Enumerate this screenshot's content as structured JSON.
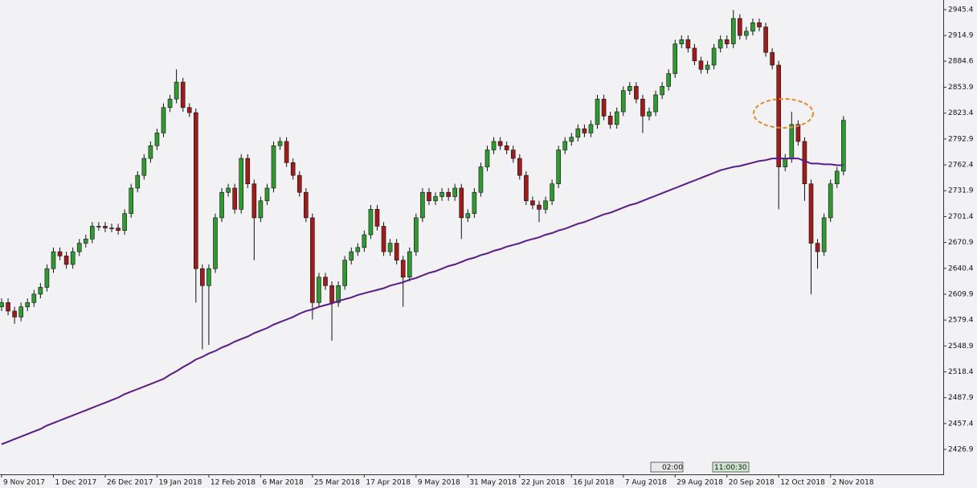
{
  "chart_data": {
    "type": "candlestick",
    "ylim": [
      2397.5,
      2956.8
    ],
    "yticks": [
      2945.4,
      2914.9,
      2884.6,
      2853.9,
      2823.4,
      2792.9,
      2762.4,
      2731.9,
      2701.4,
      2670.9,
      2640.4,
      2609.9,
      2579.4,
      2548.9,
      2518.4,
      2487.9,
      2457.4,
      2426.9
    ],
    "categories": [
      "9 Nov 2017",
      null,
      null,
      null,
      null,
      null,
      null,
      null,
      "1 Dec 2017",
      null,
      null,
      null,
      null,
      null,
      null,
      null,
      "26 Dec 2017",
      null,
      null,
      null,
      null,
      null,
      null,
      null,
      "19 Jan 2018",
      null,
      null,
      null,
      null,
      null,
      null,
      null,
      "12 Feb 2018",
      null,
      null,
      null,
      null,
      null,
      null,
      null,
      "6 Mar 2018",
      null,
      null,
      null,
      null,
      null,
      null,
      null,
      "25 Mar 2018",
      null,
      null,
      null,
      null,
      null,
      null,
      null,
      "17 Apr 2018",
      null,
      null,
      null,
      null,
      null,
      null,
      null,
      "9 May 2018",
      null,
      null,
      null,
      null,
      null,
      null,
      null,
      "31 May 2018",
      null,
      null,
      null,
      null,
      null,
      null,
      null,
      "22 Jun 2018",
      null,
      null,
      null,
      null,
      null,
      null,
      null,
      "16 Jul 2018",
      null,
      null,
      null,
      null,
      null,
      null,
      null,
      "7 Aug 2018",
      null,
      null,
      null,
      null,
      null,
      null,
      null,
      "29 Aug 2018",
      null,
      null,
      null,
      null,
      null,
      null,
      null,
      "20 Sep 2018",
      null,
      null,
      null,
      null,
      null,
      null,
      null,
      "12 Oct 2018",
      null,
      null,
      null,
      null,
      null,
      null,
      null,
      "2 Nov 2018",
      null,
      null
    ],
    "open": [
      2595,
      2600,
      2590,
      2583,
      2595,
      2600,
      2610,
      2618,
      2640,
      2660,
      2655,
      2645,
      2660,
      2670,
      2675,
      2690,
      2690,
      2688,
      2688,
      2685,
      2705,
      2735,
      2750,
      2770,
      2785,
      2800,
      2830,
      2840,
      2860,
      2830,
      2824,
      2640,
      2620,
      2640,
      2700,
      2730,
      2735,
      2710,
      2770,
      2740,
      2700,
      2720,
      2735,
      2785,
      2790,
      2765,
      2750,
      2730,
      2700,
      2600,
      2630,
      2620,
      2600,
      2620,
      2650,
      2660,
      2665,
      2680,
      2710,
      2690,
      2660,
      2670,
      2650,
      2630,
      2660,
      2700,
      2730,
      2720,
      2725,
      2730,
      2725,
      2735,
      2700,
      2705,
      2730,
      2760,
      2780,
      2790,
      2785,
      2780,
      2770,
      2750,
      2720,
      2715,
      2710,
      2720,
      2740,
      2780,
      2790,
      2795,
      2805,
      2800,
      2810,
      2840,
      2820,
      2810,
      2825,
      2850,
      2855,
      2840,
      2820,
      2825,
      2845,
      2855,
      2870,
      2905,
      2910,
      2900,
      2885,
      2875,
      2880,
      2900,
      2910,
      2905,
      2935,
      2915,
      2920,
      2930,
      2925,
      2895,
      2880,
      2760,
      2770,
      2810,
      2790,
      2740,
      2670,
      2660,
      2700,
      2740,
      2755
    ],
    "high": [
      2605,
      2605,
      2595,
      2600,
      2605,
      2615,
      2623,
      2645,
      2665,
      2665,
      2660,
      2665,
      2675,
      2680,
      2695,
      2695,
      2695,
      2693,
      2693,
      2710,
      2740,
      2755,
      2775,
      2790,
      2805,
      2835,
      2845,
      2875,
      2865,
      2835,
      2829,
      2645,
      2645,
      2705,
      2735,
      2740,
      2740,
      2775,
      2775,
      2745,
      2725,
      2740,
      2790,
      2795,
      2795,
      2770,
      2755,
      2735,
      2705,
      2635,
      2635,
      2625,
      2625,
      2655,
      2665,
      2670,
      2685,
      2715,
      2715,
      2695,
      2675,
      2675,
      2655,
      2665,
      2705,
      2735,
      2735,
      2730,
      2735,
      2735,
      2740,
      2740,
      2710,
      2735,
      2765,
      2785,
      2795,
      2795,
      2790,
      2785,
      2775,
      2755,
      2725,
      2720,
      2725,
      2745,
      2785,
      2795,
      2800,
      2810,
      2810,
      2815,
      2845,
      2845,
      2825,
      2830,
      2855,
      2860,
      2860,
      2845,
      2830,
      2850,
      2860,
      2875,
      2910,
      2915,
      2915,
      2905,
      2890,
      2885,
      2905,
      2915,
      2915,
      2945,
      2940,
      2925,
      2935,
      2935,
      2930,
      2900,
      2885,
      2775,
      2825,
      2815,
      2795,
      2745,
      2675,
      2705,
      2745,
      2760,
      2820
    ],
    "low": [
      2590,
      2585,
      2575,
      2578,
      2590,
      2595,
      2605,
      2613,
      2635,
      2650,
      2640,
      2640,
      2655,
      2665,
      2670,
      2685,
      2683,
      2683,
      2680,
      2680,
      2700,
      2730,
      2745,
      2765,
      2780,
      2795,
      2825,
      2835,
      2825,
      2819,
      2600,
      2545,
      2550,
      2635,
      2695,
      2725,
      2705,
      2705,
      2735,
      2650,
      2695,
      2715,
      2730,
      2780,
      2760,
      2745,
      2725,
      2695,
      2580,
      2595,
      2615,
      2555,
      2595,
      2615,
      2645,
      2655,
      2660,
      2675,
      2685,
      2655,
      2655,
      2645,
      2595,
      2625,
      2655,
      2695,
      2715,
      2715,
      2720,
      2720,
      2720,
      2675,
      2695,
      2700,
      2725,
      2755,
      2775,
      2780,
      2775,
      2765,
      2745,
      2715,
      2710,
      2695,
      2705,
      2715,
      2735,
      2775,
      2785,
      2790,
      2795,
      2795,
      2805,
      2815,
      2805,
      2805,
      2820,
      2845,
      2835,
      2800,
      2815,
      2820,
      2840,
      2850,
      2865,
      2900,
      2895,
      2880,
      2870,
      2870,
      2875,
      2895,
      2900,
      2900,
      2910,
      2910,
      2915,
      2920,
      2890,
      2875,
      2710,
      2755,
      2765,
      2785,
      2720,
      2610,
      2640,
      2655,
      2695,
      2735,
      2750
    ],
    "close": [
      2600,
      2590,
      2583,
      2595,
      2600,
      2610,
      2618,
      2640,
      2660,
      2655,
      2645,
      2660,
      2670,
      2675,
      2690,
      2690,
      2688,
      2688,
      2685,
      2705,
      2735,
      2750,
      2770,
      2785,
      2800,
      2830,
      2840,
      2860,
      2830,
      2824,
      2640,
      2620,
      2640,
      2700,
      2730,
      2735,
      2710,
      2770,
      2740,
      2700,
      2720,
      2735,
      2785,
      2790,
      2765,
      2750,
      2730,
      2700,
      2600,
      2630,
      2620,
      2600,
      2620,
      2650,
      2660,
      2665,
      2680,
      2710,
      2690,
      2660,
      2670,
      2650,
      2630,
      2660,
      2700,
      2730,
      2720,
      2725,
      2730,
      2725,
      2735,
      2700,
      2705,
      2730,
      2760,
      2780,
      2790,
      2785,
      2780,
      2770,
      2750,
      2720,
      2715,
      2710,
      2720,
      2740,
      2780,
      2790,
      2795,
      2805,
      2800,
      2810,
      2840,
      2820,
      2810,
      2825,
      2850,
      2855,
      2840,
      2820,
      2825,
      2845,
      2855,
      2870,
      2905,
      2910,
      2900,
      2885,
      2875,
      2880,
      2900,
      2910,
      2905,
      2935,
      2915,
      2920,
      2930,
      2925,
      2895,
      2880,
      2760,
      2770,
      2810,
      2790,
      2740,
      2670,
      2660,
      2700,
      2740,
      2755,
      2815
    ],
    "up_color": "#2f9a2f",
    "down_color": "#a01c1c",
    "moving_average": {
      "color": "#5a1a8c",
      "values": [
        2433,
        2436,
        2439,
        2442,
        2445,
        2448,
        2451,
        2455,
        2458,
        2461,
        2464,
        2467,
        2470,
        2473,
        2476,
        2479,
        2482,
        2485,
        2488,
        2492,
        2495,
        2498,
        2501,
        2504,
        2507,
        2510,
        2515,
        2519,
        2524,
        2528,
        2533,
        2536,
        2540,
        2543,
        2547,
        2550,
        2554,
        2557,
        2560,
        2564,
        2567,
        2570,
        2574,
        2577,
        2580,
        2583,
        2587,
        2590,
        2592,
        2595,
        2597,
        2599,
        2602,
        2604,
        2606,
        2609,
        2611,
        2613,
        2615,
        2617,
        2620,
        2622,
        2624,
        2627,
        2629,
        2632,
        2635,
        2637,
        2640,
        2643,
        2645,
        2648,
        2651,
        2653,
        2656,
        2658,
        2661,
        2663,
        2666,
        2668,
        2670,
        2673,
        2675,
        2677,
        2680,
        2682,
        2685,
        2687,
        2690,
        2693,
        2695,
        2698,
        2701,
        2704,
        2706,
        2709,
        2712,
        2715,
        2717,
        2720,
        2723,
        2726,
        2729,
        2732,
        2735,
        2738,
        2741,
        2744,
        2747,
        2750,
        2753,
        2756,
        2758,
        2760,
        2761,
        2763,
        2765,
        2767,
        2768,
        2770,
        2770,
        2770,
        2770,
        2770,
        2767,
        2764,
        2764,
        2763,
        2763,
        2762,
        2762
      ]
    },
    "time_markers": [
      "02:00",
      "11:00:30"
    ]
  }
}
